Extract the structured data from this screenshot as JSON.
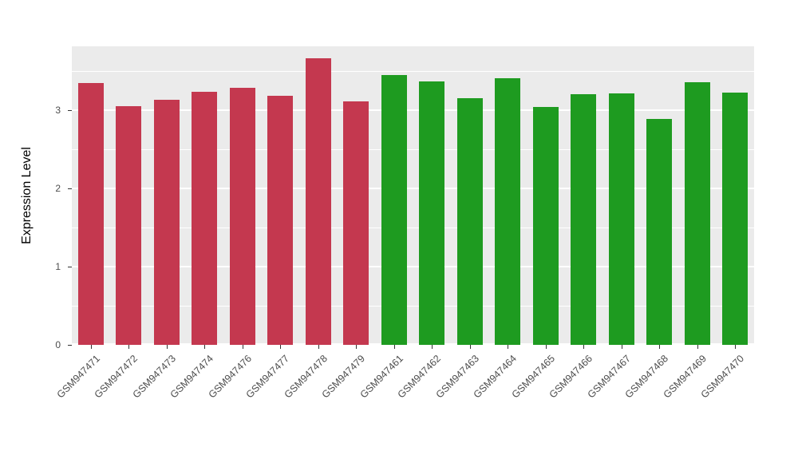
{
  "chart_data": {
    "type": "bar",
    "title": "",
    "xlabel": "",
    "ylabel": "Expression Level",
    "ymax": 3.82,
    "ylim": [
      0,
      3.82
    ],
    "y_ticks": [
      "0",
      "1",
      "2",
      "3"
    ],
    "y_minor_ticks": [
      0.5,
      1.5,
      2.5,
      3.5
    ],
    "grid": "on",
    "legend": "none",
    "panel_bg": "#EBEBEB",
    "grid_color": "#FFFFFF",
    "group_colors": {
      "red": "#C4384F",
      "green": "#1E9B20"
    },
    "bars": [
      {
        "label": "GSM947471",
        "value": 3.35,
        "color": "#C4384F"
      },
      {
        "label": "GSM947472",
        "value": 3.05,
        "color": "#C4384F"
      },
      {
        "label": "GSM947473",
        "value": 3.14,
        "color": "#C4384F"
      },
      {
        "label": "GSM947474",
        "value": 3.24,
        "color": "#C4384F"
      },
      {
        "label": "GSM947476",
        "value": 3.29,
        "color": "#C4384F"
      },
      {
        "label": "GSM947477",
        "value": 3.19,
        "color": "#C4384F"
      },
      {
        "label": "GSM947478",
        "value": 3.67,
        "color": "#C4384F"
      },
      {
        "label": "GSM947479",
        "value": 3.12,
        "color": "#C4384F"
      },
      {
        "label": "GSM947461",
        "value": 3.45,
        "color": "#1E9B20"
      },
      {
        "label": "GSM947462",
        "value": 3.37,
        "color": "#1E9B20"
      },
      {
        "label": "GSM947463",
        "value": 3.16,
        "color": "#1E9B20"
      },
      {
        "label": "GSM947464",
        "value": 3.41,
        "color": "#1E9B20"
      },
      {
        "label": "GSM947465",
        "value": 3.04,
        "color": "#1E9B20"
      },
      {
        "label": "GSM947466",
        "value": 3.21,
        "color": "#1E9B20"
      },
      {
        "label": "GSM947467",
        "value": 3.22,
        "color": "#1E9B20"
      },
      {
        "label": "GSM947468",
        "value": 2.89,
        "color": "#1E9B20"
      },
      {
        "label": "GSM947469",
        "value": 3.36,
        "color": "#1E9B20"
      },
      {
        "label": "GSM947470",
        "value": 3.23,
        "color": "#1E9B20"
      }
    ]
  }
}
